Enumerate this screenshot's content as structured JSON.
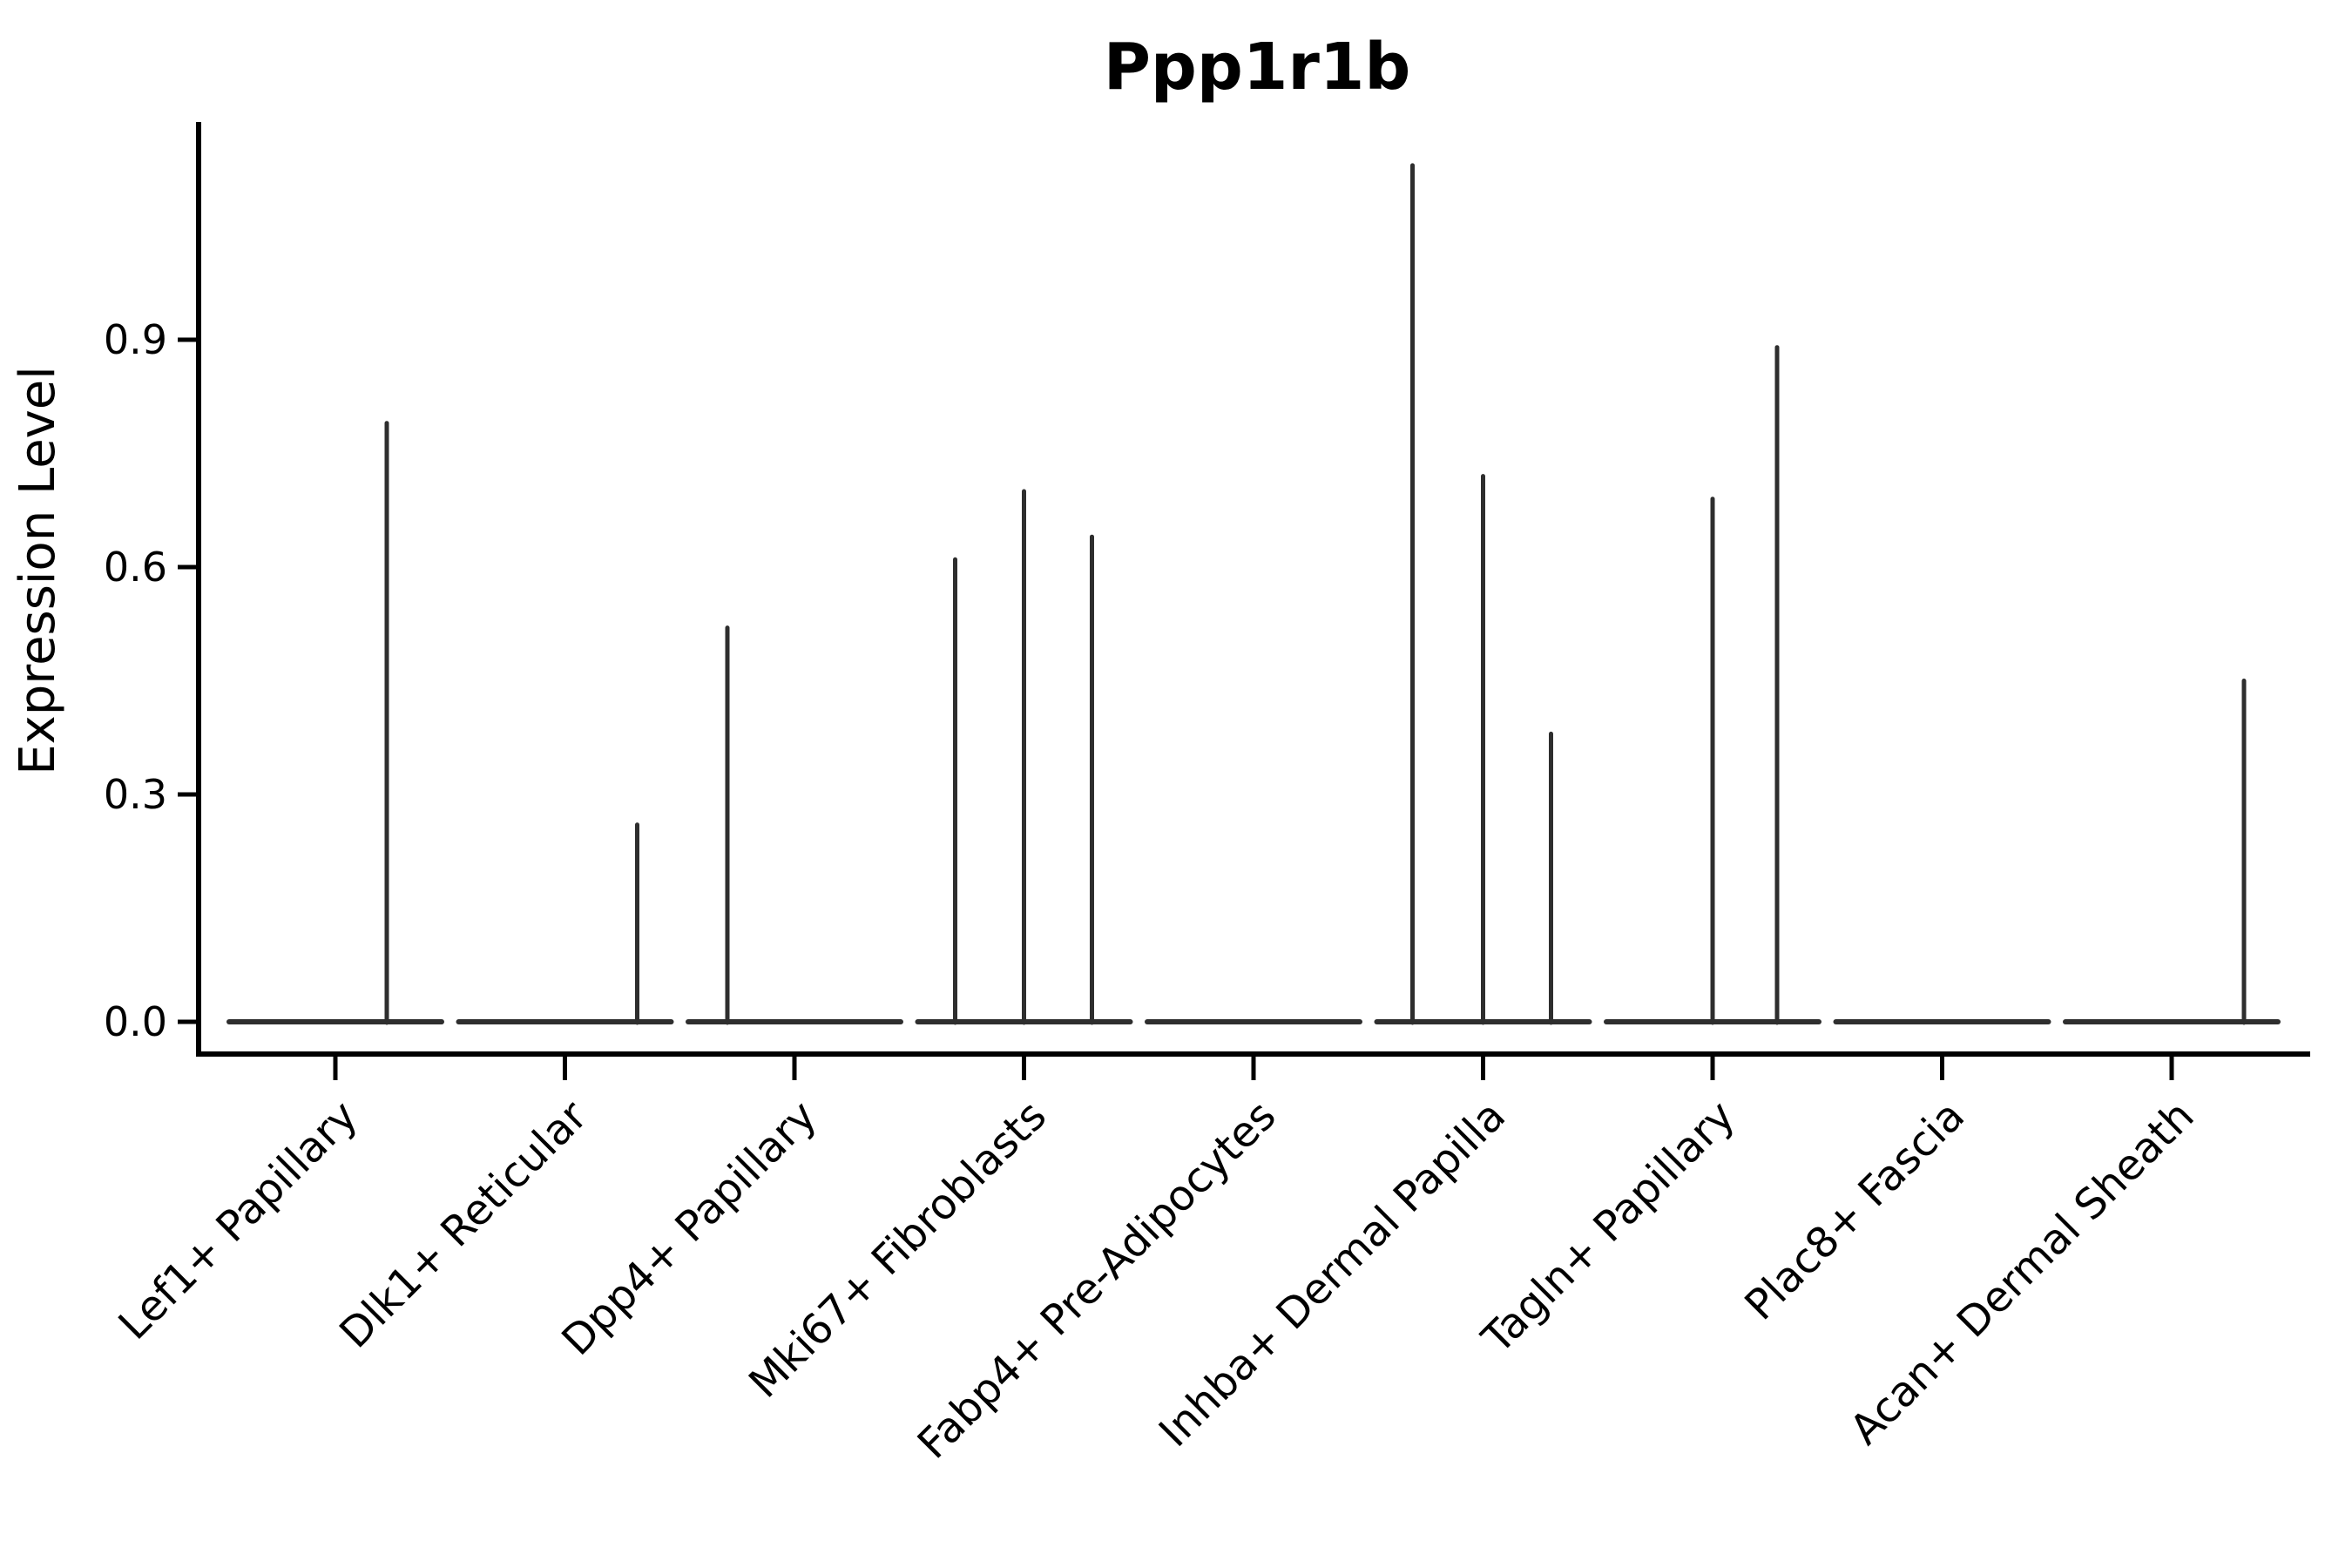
{
  "chart_data": {
    "type": "violin",
    "title": "Ppp1r1b",
    "xlabel": "",
    "ylabel": "Expression Level",
    "legend": "none",
    "grid": false,
    "background": "#ffffff",
    "axis_color": "#000000",
    "violin_color": "#2e2e2e",
    "ylim": [
      0,
      1.19
    ],
    "ytick_values": [
      0.0,
      0.3,
      0.6,
      0.9
    ],
    "ytick_labels": [
      "0.0",
      "0.3",
      "0.6",
      "0.9"
    ],
    "categories": [
      "Lef1+ Papillary",
      "Dlk1+ Reticular",
      "Dpp4+ Papillary",
      "Mki67+ Fibroblasts",
      "Fabp4+ Pre-Adipocytes",
      "Inhba+ Dermal Papilla",
      "Tagln+ Papillary",
      "Plac8+ Fascia",
      "Acan+ Dermal Sheath"
    ],
    "series": [
      {
        "name": "Lef1+ Papillary",
        "zero_density_line": true,
        "spikes": [
          {
            "x_offset": 59,
            "value": 0.79
          }
        ]
      },
      {
        "name": "Dlk1+ Reticular",
        "zero_density_line": true,
        "spikes": [
          {
            "x_offset": 83,
            "value": 0.26
          }
        ]
      },
      {
        "name": "Dpp4+ Papillary",
        "zero_density_line": true,
        "spikes": [
          {
            "x_offset": -77,
            "value": 0.52
          }
        ]
      },
      {
        "name": "Mki67+ Fibroblasts",
        "zero_density_line": true,
        "spikes": [
          {
            "x_offset": -79,
            "value": 0.61
          },
          {
            "x_offset": 0,
            "value": 0.7
          },
          {
            "x_offset": 78,
            "value": 0.64
          }
        ]
      },
      {
        "name": "Fabp4+ Pre-Adipocytes",
        "zero_density_line": true,
        "spikes": []
      },
      {
        "name": "Inhba+ Dermal Papilla",
        "zero_density_line": true,
        "spikes": [
          {
            "x_offset": -81,
            "value": 1.13
          },
          {
            "x_offset": 0,
            "value": 0.72
          },
          {
            "x_offset": 78,
            "value": 0.38
          }
        ]
      },
      {
        "name": "Tagln+ Papillary",
        "zero_density_line": true,
        "spikes": [
          {
            "x_offset": 0,
            "value": 0.69
          },
          {
            "x_offset": 74,
            "value": 0.89
          }
        ]
      },
      {
        "name": "Plac8+ Fascia",
        "zero_density_line": true,
        "spikes": []
      },
      {
        "name": "Acan+ Dermal Sheath",
        "zero_density_line": true,
        "spikes": [
          {
            "x_offset": 83,
            "value": 0.45
          }
        ]
      }
    ]
  }
}
